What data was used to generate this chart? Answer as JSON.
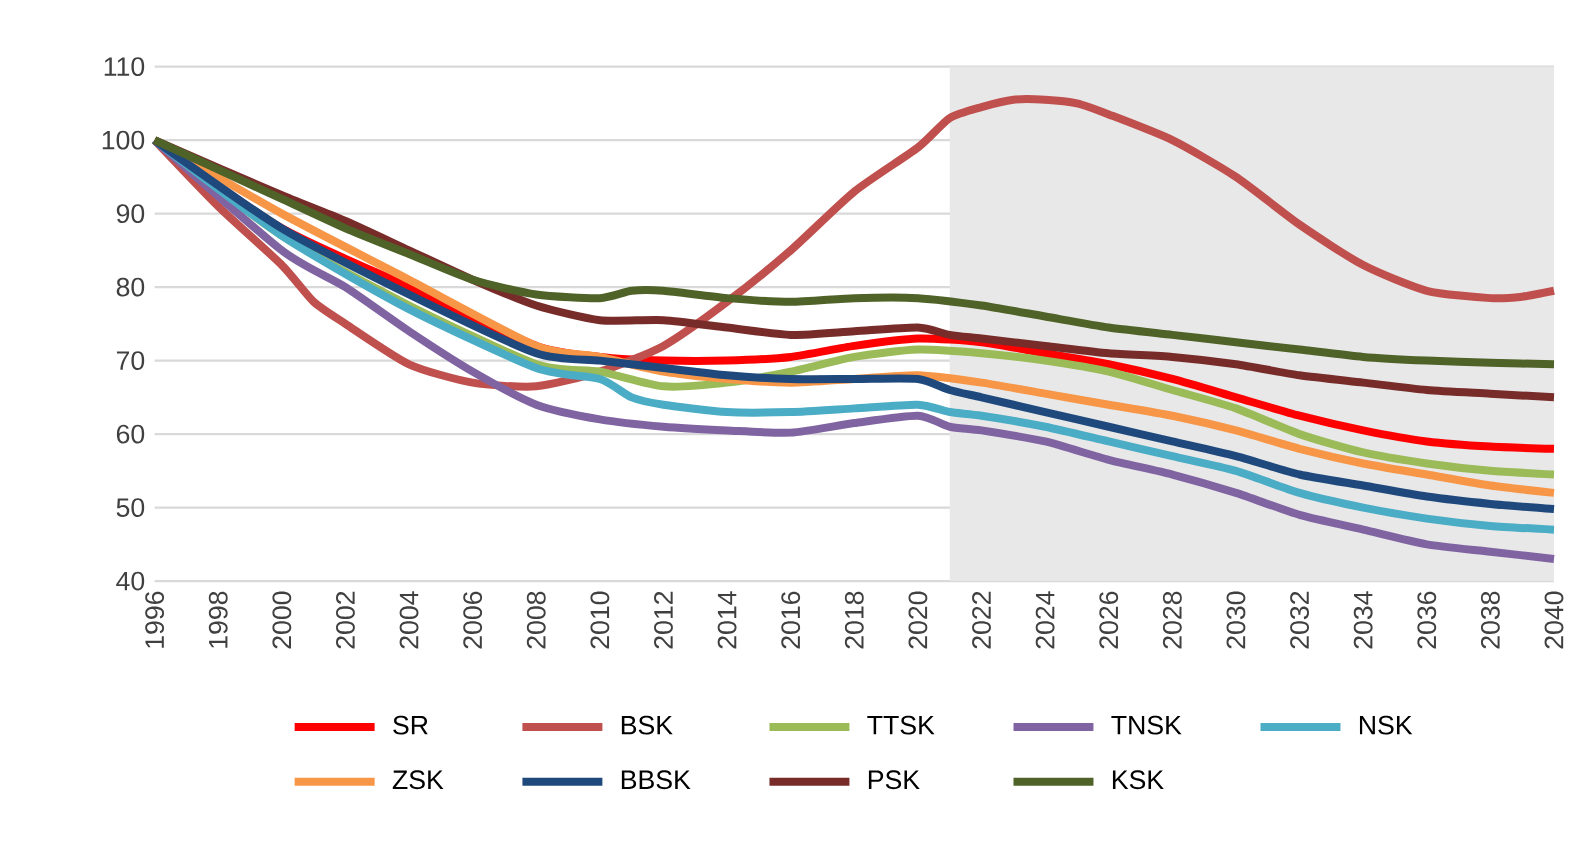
{
  "chart_data": {
    "type": "line",
    "xlim": [
      1996,
      2040
    ],
    "ylim": [
      40,
      110
    ],
    "xticks": [
      1996,
      1998,
      2000,
      2002,
      2004,
      2006,
      2008,
      2010,
      2012,
      2014,
      2016,
      2018,
      2020,
      2022,
      2024,
      2026,
      2028,
      2030,
      2032,
      2034,
      2036,
      2038,
      2040
    ],
    "yticks": [
      40,
      50,
      60,
      70,
      80,
      90,
      100,
      110
    ],
    "grid": "y",
    "legend": "bottom",
    "marker": "none",
    "line_style": "solid",
    "bands": [
      {
        "axis": "x",
        "from": 2021,
        "to": 2040,
        "color": "#e8e8e8"
      }
    ],
    "series": [
      {
        "name": "SR",
        "color": "#ff0000",
        "x": [
          1996,
          2000,
          2004,
          2008,
          2010,
          2012,
          2014,
          2016,
          2018,
          2020,
          2022,
          2024,
          2026,
          2028,
          2030,
          2032,
          2034,
          2036,
          2038,
          2040
        ],
        "values": [
          100,
          88,
          80,
          72,
          70.5,
          70,
          70,
          70.5,
          72,
          73,
          72.5,
          71,
          69.5,
          67.5,
          65,
          62.5,
          60.5,
          59,
          58.3,
          58
        ]
      },
      {
        "name": "BSK",
        "color": "#c0504d",
        "x": [
          1996,
          1998,
          2000,
          2001,
          2002,
          2004,
          2006,
          2008,
          2010,
          2012,
          2014,
          2016,
          2018,
          2020,
          2021,
          2022,
          2023,
          2024,
          2025,
          2026,
          2028,
          2030,
          2032,
          2034,
          2036,
          2038,
          2039,
          2040
        ],
        "values": [
          100,
          91,
          83,
          78,
          75,
          69.5,
          67,
          66.5,
          68.5,
          72,
          78,
          85,
          93,
          99,
          103,
          104.5,
          105.5,
          105.5,
          105,
          103.5,
          100,
          95,
          88.5,
          83,
          79.5,
          78.5,
          78.7,
          79.5
        ]
      },
      {
        "name": "TTSK",
        "color": "#9bbb59",
        "x": [
          1996,
          2000,
          2004,
          2008,
          2010,
          2012,
          2014,
          2016,
          2018,
          2020,
          2022,
          2024,
          2026,
          2028,
          2030,
          2032,
          2034,
          2036,
          2038,
          2040
        ],
        "values": [
          100,
          87,
          77.5,
          69.5,
          68.5,
          66.5,
          67,
          68.5,
          70.5,
          71.5,
          71,
          70,
          68.5,
          66,
          63.5,
          60,
          57.5,
          56,
          55,
          54.5
        ]
      },
      {
        "name": "TNSK",
        "color": "#8064a2",
        "x": [
          1996,
          2000,
          2002,
          2004,
          2006,
          2008,
          2010,
          2012,
          2014,
          2016,
          2018,
          2020,
          2021,
          2022,
          2024,
          2026,
          2028,
          2030,
          2032,
          2034,
          2036,
          2038,
          2040
        ],
        "values": [
          100,
          85,
          80,
          74,
          68.5,
          64,
          62,
          61,
          60.5,
          60.2,
          61.5,
          62.5,
          61,
          60.5,
          59,
          56.5,
          54.5,
          52,
          49,
          47,
          45,
          44,
          43
        ]
      },
      {
        "name": "NSK",
        "color": "#4bacc6",
        "x": [
          1996,
          2000,
          2004,
          2008,
          2010,
          2011,
          2012,
          2014,
          2016,
          2018,
          2020,
          2021,
          2022,
          2024,
          2026,
          2028,
          2030,
          2032,
          2034,
          2036,
          2038,
          2040
        ],
        "values": [
          100,
          87,
          77,
          69,
          67.5,
          65,
          64,
          63,
          63,
          63.5,
          64,
          63,
          62.5,
          61,
          59,
          57,
          55,
          52,
          50,
          48.5,
          47.5,
          47
        ]
      },
      {
        "name": "ZSK",
        "color": "#f79646",
        "x": [
          1996,
          2000,
          2004,
          2008,
          2010,
          2012,
          2014,
          2016,
          2018,
          2020,
          2022,
          2024,
          2026,
          2028,
          2030,
          2032,
          2034,
          2036,
          2038,
          2040
        ],
        "values": [
          100,
          90,
          81,
          72,
          70.5,
          68.5,
          67.5,
          67,
          67.5,
          68,
          67,
          65.5,
          64,
          62.5,
          60.5,
          58,
          56,
          54.5,
          53,
          52
        ]
      },
      {
        "name": "BBSK",
        "color": "#1f497d",
        "x": [
          1996,
          2000,
          2004,
          2008,
          2010,
          2012,
          2014,
          2016,
          2018,
          2020,
          2021,
          2022,
          2024,
          2026,
          2028,
          2030,
          2032,
          2034,
          2036,
          2038,
          2040
        ],
        "values": [
          100,
          88,
          79,
          71,
          70,
          69,
          68,
          67.5,
          67.5,
          67.5,
          66,
          65,
          63,
          61,
          59,
          57,
          54.5,
          53,
          51.5,
          50.5,
          49.8
        ]
      },
      {
        "name": "PSK",
        "color": "#772c2a",
        "x": [
          1996,
          2000,
          2002,
          2004,
          2006,
          2008,
          2010,
          2012,
          2014,
          2016,
          2018,
          2020,
          2021,
          2022,
          2024,
          2026,
          2028,
          2030,
          2032,
          2034,
          2036,
          2038,
          2040
        ],
        "values": [
          100,
          92.5,
          89,
          85,
          81,
          77.5,
          75.5,
          75.5,
          74.5,
          73.5,
          74,
          74.5,
          73.5,
          73,
          72,
          71,
          70.5,
          69.5,
          68,
          67,
          66,
          65.5,
          65
        ]
      },
      {
        "name": "KSK",
        "color": "#4f6228",
        "x": [
          1996,
          2000,
          2002,
          2004,
          2006,
          2008,
          2010,
          2011,
          2012,
          2014,
          2016,
          2018,
          2020,
          2022,
          2024,
          2026,
          2028,
          2030,
          2032,
          2034,
          2036,
          2038,
          2040
        ],
        "values": [
          100,
          92,
          88,
          84.5,
          81,
          79,
          78.5,
          79.5,
          79.5,
          78.5,
          78,
          78.5,
          78.5,
          77.5,
          76,
          74.5,
          73.5,
          72.5,
          71.5,
          70.5,
          70,
          69.7,
          69.5
        ]
      }
    ]
  }
}
